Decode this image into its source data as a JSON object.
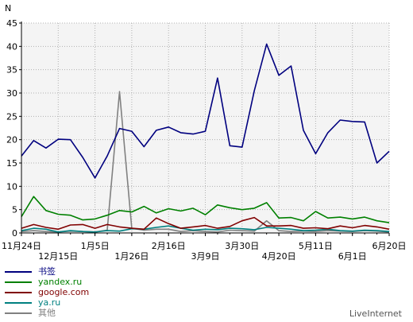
{
  "colors": {
    "grid": "#b0b0b0",
    "plot_bg": "#f4f4f4",
    "axis": "#000000"
  },
  "watermark": "LiveInternet",
  "chart_data": {
    "type": "line",
    "ylabel": "N",
    "ylim": [
      0,
      45
    ],
    "y_ticks": [
      0,
      5,
      10,
      15,
      20,
      25,
      30,
      35,
      40,
      45
    ],
    "grid": true,
    "legend_position": "bottom-left",
    "x_tick_labels": [
      {
        "label": "11月24日",
        "index": 0,
        "row": 1
      },
      {
        "label": "12月15日",
        "index": 3,
        "row": 2
      },
      {
        "label": "1月5日",
        "index": 6,
        "row": 1
      },
      {
        "label": "1月26日",
        "index": 9,
        "row": 2
      },
      {
        "label": "2月16日",
        "index": 12,
        "row": 1
      },
      {
        "label": "3月9日",
        "index": 15,
        "row": 2
      },
      {
        "label": "3月30日",
        "index": 18,
        "row": 1
      },
      {
        "label": "4月20日",
        "index": 21,
        "row": 2
      },
      {
        "label": "5月11日",
        "index": 24,
        "row": 1
      },
      {
        "label": "6月1日",
        "index": 27,
        "row": 2
      },
      {
        "label": "6月20日",
        "index": 30,
        "row": 1
      }
    ],
    "series": [
      {
        "name": "书签",
        "color": "#00007f",
        "values": [
          16.5,
          19.8,
          18.2,
          20.1,
          20.0,
          16.2,
          11.8,
          16.5,
          22.4,
          21.8,
          18.5,
          22.0,
          22.7,
          21.5,
          21.2,
          21.8,
          33.2,
          18.7,
          18.4,
          30.5,
          40.5,
          33.8,
          35.8,
          22.0,
          17.0,
          21.5,
          24.2,
          23.9,
          23.8,
          15.0,
          17.5
        ]
      },
      {
        "name": "yandex.ru",
        "color": "#008000",
        "values": [
          3.5,
          7.8,
          4.8,
          4.0,
          3.8,
          2.8,
          3.0,
          3.8,
          4.8,
          4.5,
          5.7,
          4.3,
          5.2,
          4.7,
          5.3,
          3.9,
          6.0,
          5.4,
          5.0,
          5.3,
          6.5,
          3.2,
          3.3,
          2.6,
          4.6,
          3.2,
          3.4,
          3.0,
          3.4,
          2.6,
          2.2
        ]
      },
      {
        "name": "google.com",
        "color": "#800000",
        "values": [
          1.0,
          1.8,
          1.2,
          0.8,
          1.7,
          1.8,
          1.0,
          1.8,
          1.3,
          1.0,
          0.8,
          3.2,
          2.0,
          1.0,
          1.3,
          1.6,
          1.0,
          1.4,
          2.6,
          3.3,
          1.5,
          1.5,
          1.6,
          1.0,
          1.1,
          0.9,
          1.5,
          1.1,
          1.6,
          1.3,
          0.8
        ]
      },
      {
        "name": "ya.ru",
        "color": "#008080",
        "values": [
          0.5,
          1.0,
          0.8,
          0.2,
          0.5,
          0.3,
          0.2,
          0.5,
          0.4,
          0.9,
          0.8,
          1.2,
          1.5,
          1.0,
          0.6,
          0.8,
          0.7,
          1.0,
          0.9,
          0.7,
          1.2,
          1.0,
          0.8,
          0.5,
          0.6,
          0.8,
          0.5,
          0.4,
          0.6,
          0.5,
          0.3
        ]
      },
      {
        "name": "其他",
        "color": "#808080",
        "values": [
          0.3,
          0.5,
          0.3,
          0.2,
          0.4,
          0.3,
          0.2,
          0.6,
          30.3,
          1.0,
          0.6,
          0.8,
          0.8,
          0.3,
          0.5,
          0.3,
          0.2,
          0.6,
          0.5,
          0.4,
          2.6,
          0.5,
          0.3,
          0.4,
          0.3,
          0.5,
          0.4,
          0.3,
          0.5,
          0.4,
          0.2
        ]
      }
    ]
  }
}
